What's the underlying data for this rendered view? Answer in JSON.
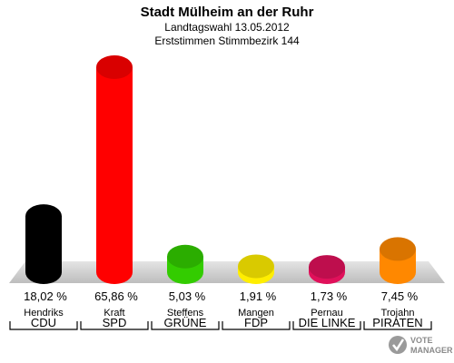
{
  "chart_data": {
    "type": "bar",
    "title": "Stadt Mülheim an der Ruhr",
    "subtitle_1": "Landtagswahl 13.05.2012",
    "subtitle_2": "Erststimmen Stimmbezirk 144",
    "categories": [
      "CDU",
      "SPD",
      "GRÜNE",
      "FDP",
      "DIE LINKE",
      "PIRATEN"
    ],
    "candidates": [
      "Hendriks",
      "Kraft",
      "Steffens",
      "Mangen",
      "Pernau",
      "Trojahn"
    ],
    "values": [
      18.02,
      65.86,
      5.03,
      1.91,
      1.73,
      7.45
    ],
    "value_labels": [
      "18,02 %",
      "65,86 %",
      "5,03 %",
      "1,91 %",
      "1,73 %",
      "7,45 %"
    ],
    "colors": [
      "#000000",
      "#ff0000",
      "#33cc00",
      "#ffee00",
      "#e0105a",
      "#ff8800"
    ],
    "ylim": [
      0,
      70
    ],
    "grid": false,
    "legend": "none"
  },
  "watermark": {
    "line1": "VOTE",
    "line2": "MANAGER",
    "icon": "vote-check-icon"
  }
}
